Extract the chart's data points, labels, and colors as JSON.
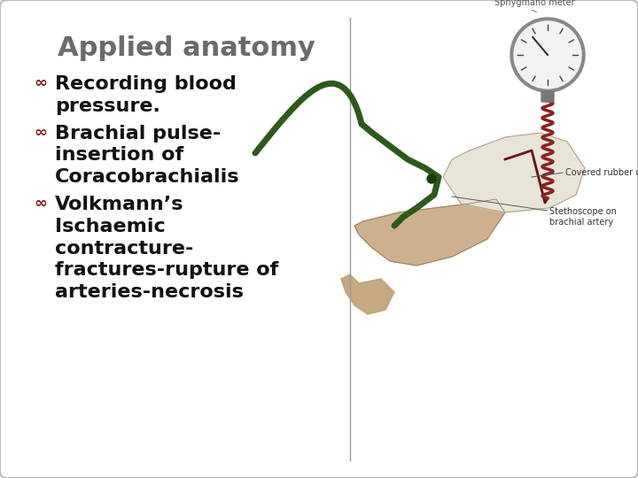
{
  "title": "Applied anatomy",
  "title_color": "#6b6b6b",
  "title_fontsize": 22,
  "background_color": "#ffffff",
  "border_color": "#bbbbbb",
  "bullet_color": "#7B2020",
  "text_color": "#111111",
  "divider_color": "#999999",
  "text_fontsize": 16,
  "figsize": [
    7.2,
    5.4
  ],
  "dpi": 100,
  "bullet1_line1": "Recording blood",
  "bullet1_line2": "pressure.",
  "bullet2_line1": "Brachial pulse-",
  "bullet2_line2": "insertion of",
  "bullet2_line3": "Coracobrachialis",
  "bullet3_line1": "Volkmann’s",
  "bullet3_line2": "Ischaemic",
  "bullet3_line3": "contracture-",
  "bullet3_line4": "fractures-rupture of",
  "bullet3_line5": "arteries-necrosis"
}
